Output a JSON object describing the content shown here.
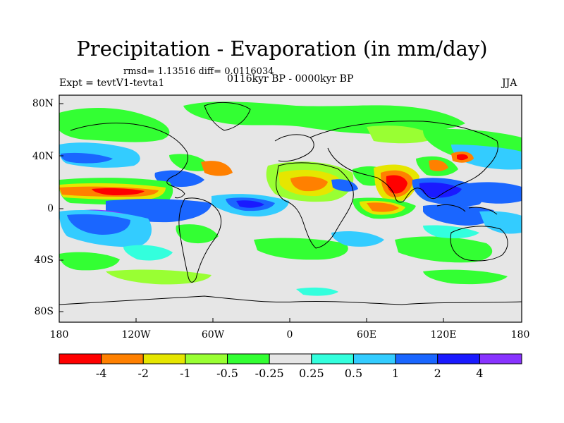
{
  "title": "Precipitation - Evaporation (in mm/day)",
  "stats": "rmsd= 1.13516 diff= 0.0116034",
  "experiment": "Expt = tevtV1-tevta1",
  "period": "0116kyr BP - 0000kyr BP",
  "season": "JJA",
  "lat_ticks": [
    "80N",
    "40N",
    "0",
    "40S",
    "80S"
  ],
  "lon_ticks": [
    "180",
    "120W",
    "60W",
    "0",
    "60E",
    "120E",
    "180"
  ],
  "colorbar": {
    "labels": [
      "-4",
      "-2",
      "-1",
      "-0.5",
      "-0.25",
      "0.25",
      "0.5",
      "1",
      "2",
      "4"
    ],
    "colors": [
      "#ff0000",
      "#ff8000",
      "#e6e600",
      "#99ff33",
      "#33ff33",
      "#e6e6e6",
      "#33ffdd",
      "#33ccff",
      "#1a66ff",
      "#1a1aff",
      "#8833ff"
    ]
  }
}
